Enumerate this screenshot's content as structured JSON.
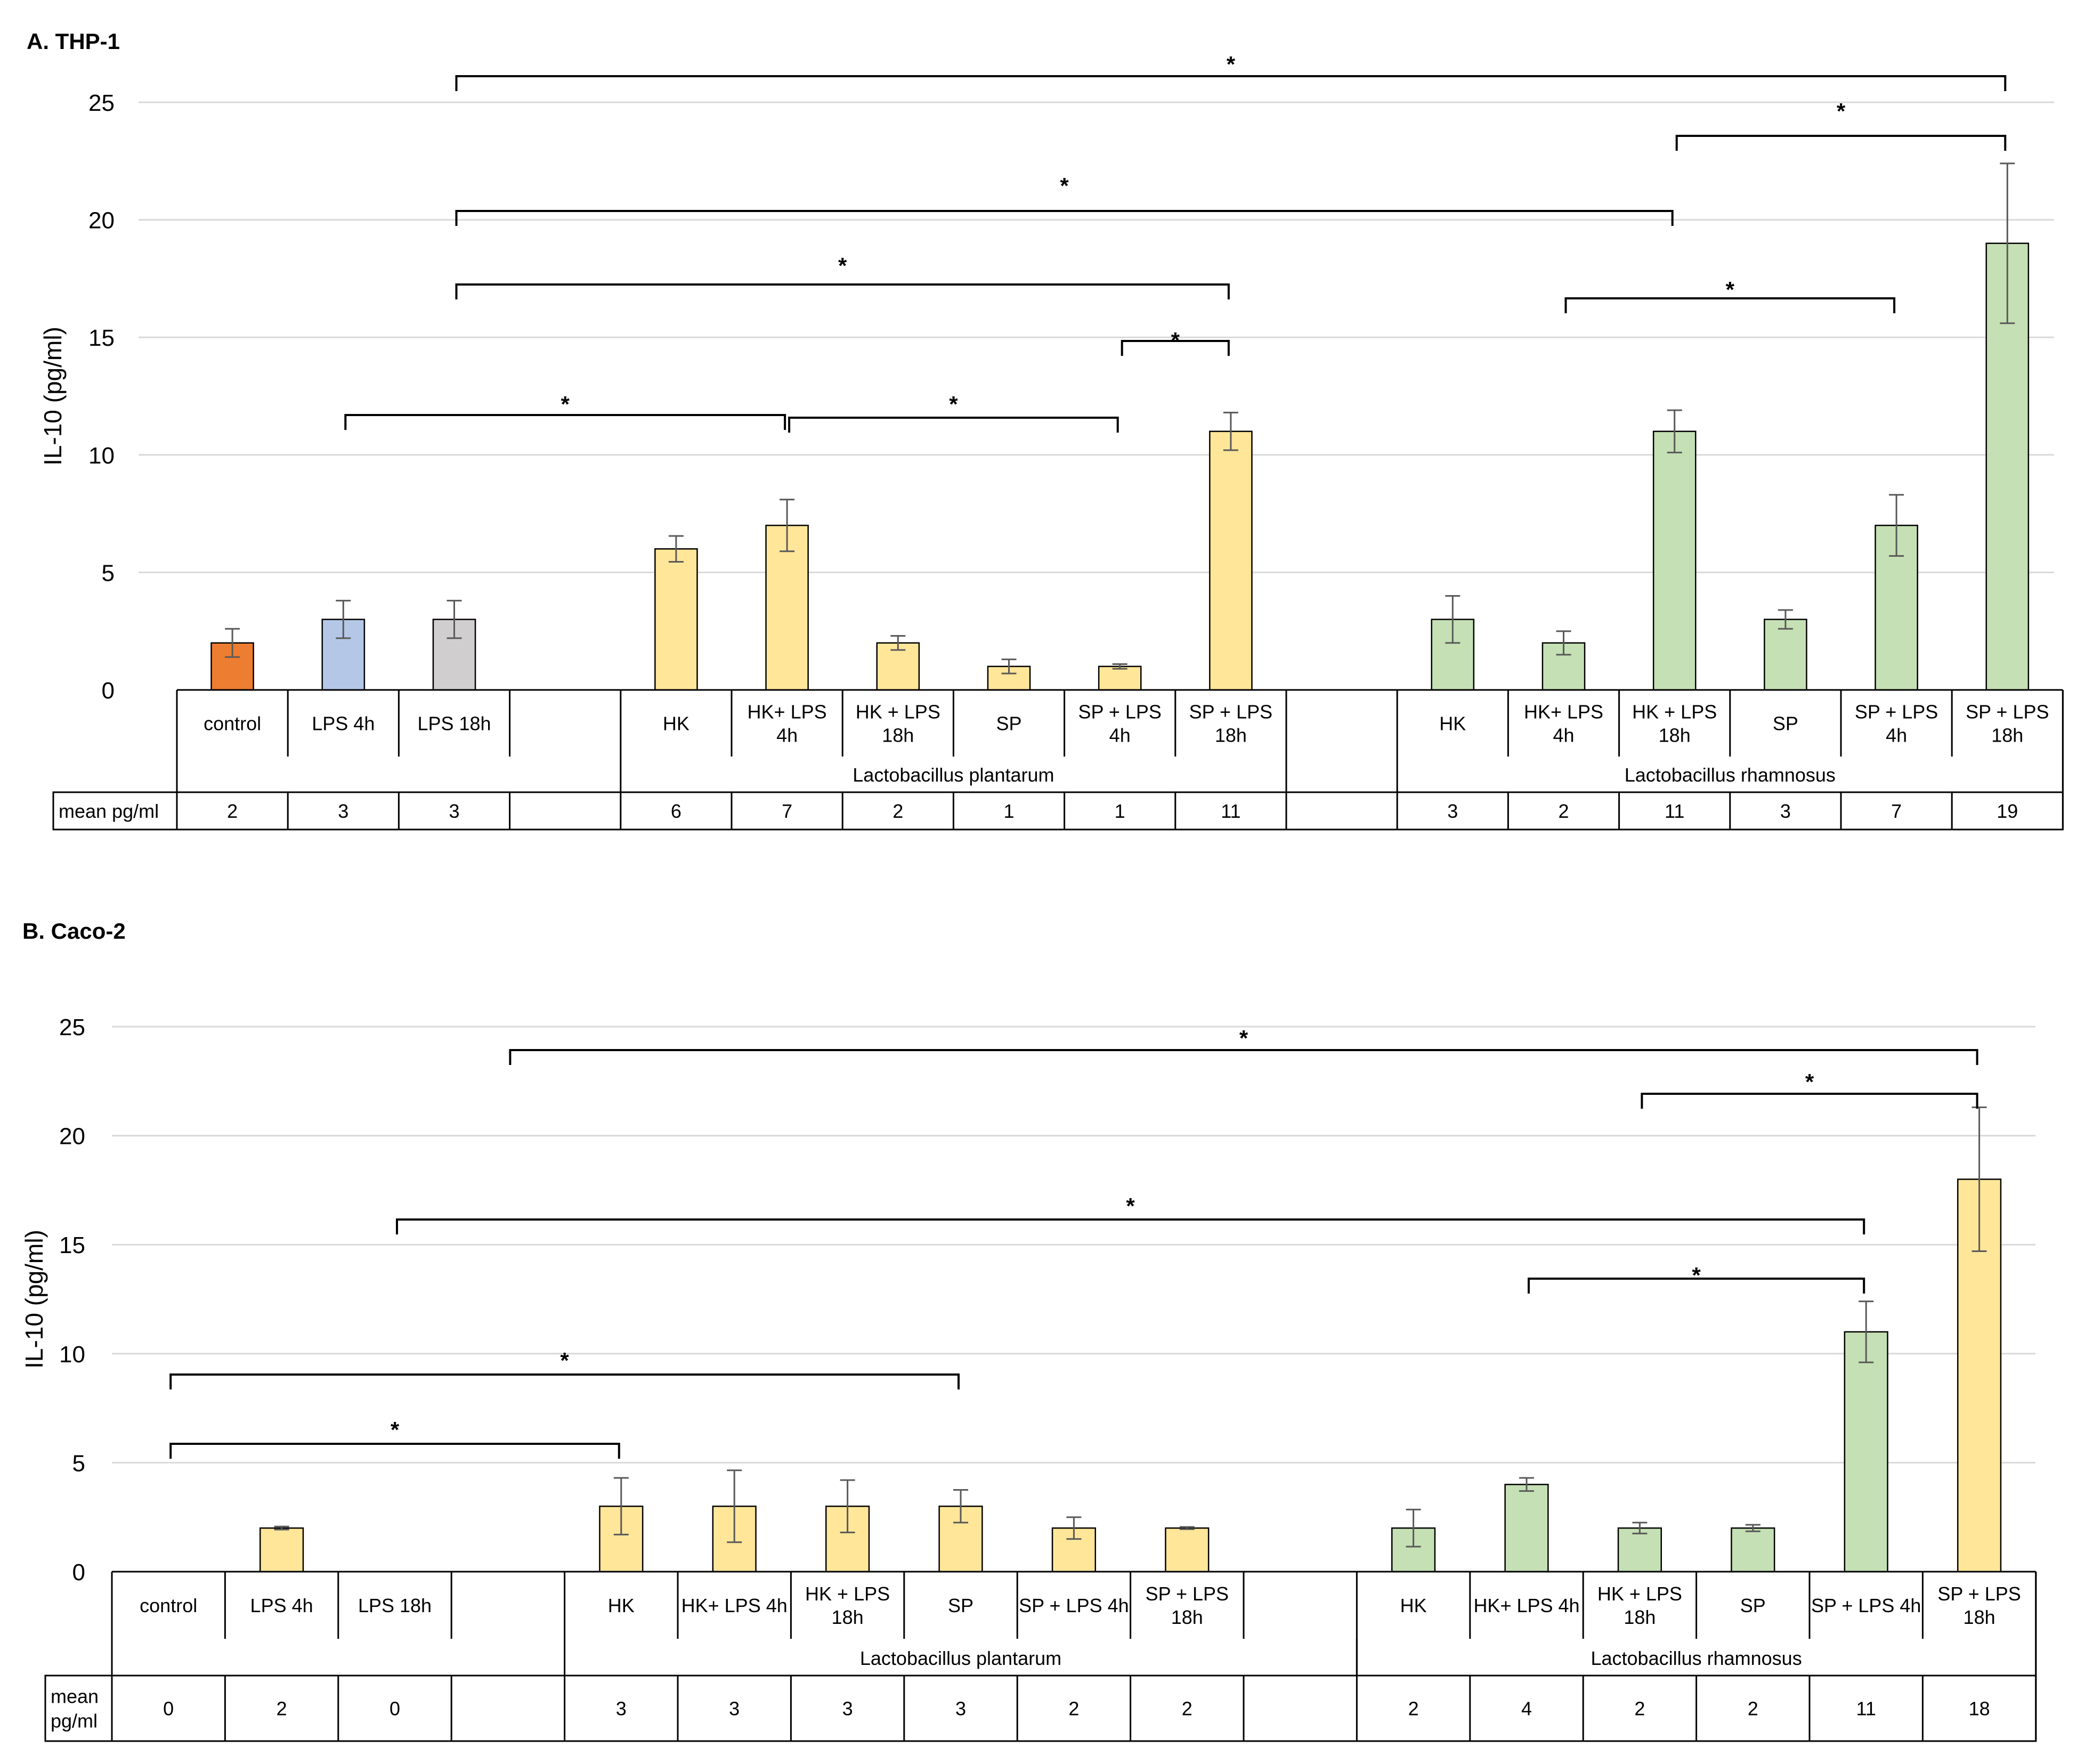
{
  "chart_data": [
    {
      "type": "bar",
      "title": "A. THP-1",
      "ylabel": "IL-10 (pg/ml)",
      "ylim": [
        0,
        25
      ],
      "yticks": [
        0,
        5,
        10,
        15,
        20,
        25
      ],
      "grid": true,
      "categories": [
        "control",
        "LPS 4h",
        "LPS 18h",
        "",
        "HK",
        "HK+ LPS 4h",
        "HK + LPS 18h",
        "SP",
        "SP + LPS 4h",
        "SP + LPS 18h",
        "",
        "HK",
        "HK+ LPS 4h",
        "HK + LPS 18h",
        "SP",
        "SP + LPS 4h",
        "SP + LPS 18h"
      ],
      "category_lines": [
        [
          "control"
        ],
        [
          "LPS 4h"
        ],
        [
          "LPS 18h"
        ],
        [
          ""
        ],
        [
          "HK"
        ],
        [
          "HK+ LPS",
          "4h"
        ],
        [
          "HK + LPS",
          "18h"
        ],
        [
          "SP"
        ],
        [
          "SP + LPS",
          "4h"
        ],
        [
          "SP + LPS",
          "18h"
        ],
        [
          ""
        ],
        [
          "HK"
        ],
        [
          "HK+ LPS",
          "4h"
        ],
        [
          "HK + LPS",
          "18h"
        ],
        [
          "SP"
        ],
        [
          "SP + LPS",
          "4h"
        ],
        [
          "SP + LPS",
          "18h"
        ]
      ],
      "values": [
        2,
        3,
        3,
        null,
        6,
        7,
        2,
        1,
        1,
        11,
        null,
        3,
        2,
        11,
        3,
        7,
        19
      ],
      "errors": [
        0.6,
        0.8,
        0.8,
        null,
        0.55,
        1.1,
        0.3,
        0.3,
        0.1,
        0.8,
        null,
        1.0,
        0.5,
        0.9,
        0.4,
        1.3,
        3.4
      ],
      "colors": [
        "#ed7d31",
        "#b4c7e7",
        "#d0cece",
        null,
        "#ffe699",
        "#ffe699",
        "#ffe699",
        "#ffe699",
        "#ffe699",
        "#ffe699",
        null,
        "#c5e0b4",
        "#c5e0b4",
        "#c5e0b4",
        "#c5e0b4",
        "#c5e0b4",
        "#c5e0b4"
      ],
      "groups": [
        {
          "label": "Lactobacillus plantarum",
          "start": 4,
          "end": 9
        },
        {
          "label": "Lactobacillus rhamnosus",
          "start": 11,
          "end": 16
        }
      ],
      "table_label": "mean pg/ml",
      "table_label_lines": [
        "mean pg/ml"
      ],
      "means": [
        "2",
        "3",
        "3",
        "",
        "6",
        "7",
        "2",
        "1",
        "1",
        "11",
        "",
        "3",
        "2",
        "11",
        "3",
        "7",
        "19"
      ],
      "significance": [
        {
          "from": 2,
          "to": 16,
          "label": "*"
        },
        {
          "from": 13,
          "to": 16,
          "label": "*"
        },
        {
          "from": 2,
          "to": 13,
          "label": "*"
        },
        {
          "from": 2,
          "to": 9,
          "label": "*"
        },
        {
          "from": 12,
          "to": 15,
          "label": "*"
        },
        {
          "from": 8,
          "to": 9,
          "label": "*"
        },
        {
          "from": 1,
          "to": 5,
          "label": "*"
        },
        {
          "from": 5,
          "to": 8,
          "label": "*"
        }
      ]
    },
    {
      "type": "bar",
      "title": "B. Caco-2",
      "ylabel": "IL-10 (pg/ml)",
      "ylim": [
        0,
        25
      ],
      "yticks": [
        0,
        5,
        10,
        15,
        20,
        25
      ],
      "grid": true,
      "categories": [
        "control",
        "LPS 4h",
        "LPS 18h",
        "",
        "HK",
        "HK+ LPS 4h",
        "HK + LPS 18h",
        "SP",
        "SP + LPS 4h",
        "SP + LPS 18h",
        "",
        "HK",
        "HK+ LPS 4h",
        "HK + LPS 18h",
        "SP",
        "SP + LPS 4h",
        "SP + LPS 18h"
      ],
      "category_lines": [
        [
          "control"
        ],
        [
          "LPS 4h"
        ],
        [
          "LPS 18h"
        ],
        [
          ""
        ],
        [
          "HK"
        ],
        [
          "HK+ LPS 4h"
        ],
        [
          "HK + LPS",
          "18h"
        ],
        [
          "SP"
        ],
        [
          "SP + LPS 4h"
        ],
        [
          "SP + LPS",
          "18h"
        ],
        [
          ""
        ],
        [
          "HK"
        ],
        [
          "HK+ LPS 4h"
        ],
        [
          "HK + LPS",
          "18h"
        ],
        [
          "SP"
        ],
        [
          "SP + LPS 4h"
        ],
        [
          "SP + LPS",
          "18h"
        ]
      ],
      "values": [
        0,
        2,
        0,
        null,
        3,
        3,
        3,
        3,
        2,
        2,
        null,
        2,
        4,
        2,
        2,
        11,
        18
      ],
      "errors": [
        0,
        0.07,
        0,
        null,
        1.3,
        1.65,
        1.2,
        0.75,
        0.5,
        0.05,
        null,
        0.85,
        0.3,
        0.25,
        0.15,
        1.4,
        3.3
      ],
      "colors": [
        null,
        "#ffe699",
        null,
        null,
        "#ffe699",
        "#ffe699",
        "#ffe699",
        "#ffe699",
        "#ffe699",
        "#ffe699",
        null,
        "#c5e0b4",
        "#c5e0b4",
        "#c5e0b4",
        "#c5e0b4",
        "#c5e0b4",
        "#ffe699"
      ],
      "groups": [
        {
          "label": "Lactobacillus plantarum",
          "start": 4,
          "end": 10
        },
        {
          "label": "Lactobacillus rhamnosus",
          "start": 11,
          "end": 16
        }
      ],
      "table_label": "mean pg/ml",
      "table_label_lines": [
        "mean",
        "pg/ml"
      ],
      "means": [
        "0",
        "2",
        "0",
        "",
        "3",
        "3",
        "3",
        "3",
        "2",
        "2",
        "",
        "2",
        "4",
        "2",
        "2",
        "11",
        "18"
      ],
      "significance": [
        {
          "from": 3,
          "to": 16,
          "label": "*"
        },
        {
          "from": 13,
          "to": 16,
          "label": "*"
        },
        {
          "from": 2,
          "to": 15,
          "label": "*"
        },
        {
          "from": 12,
          "to": 15,
          "label": "*"
        },
        {
          "from": 0,
          "to": 7,
          "label": "*"
        },
        {
          "from": 0,
          "to": 4,
          "label": "*"
        }
      ]
    }
  ]
}
